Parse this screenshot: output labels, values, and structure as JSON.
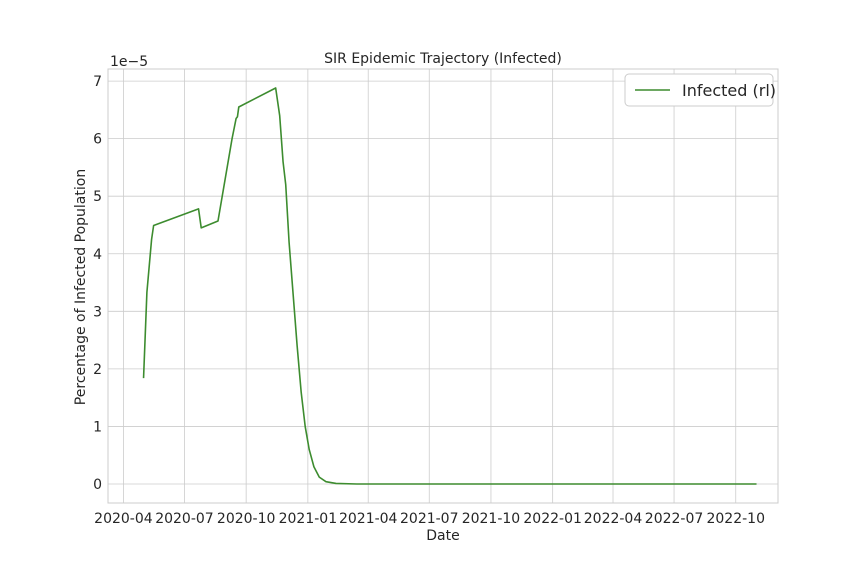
{
  "chart_data": {
    "type": "line",
    "title": "SIR Epidemic Trajectory (Infected)",
    "xlabel": "Date",
    "ylabel": "Percentage of Infected Population",
    "y_scale_label": "1e−5",
    "y_multiplier": 1e-05,
    "xlim": [
      "2020-03-09",
      "2022-12-03"
    ],
    "ylim": [
      -0.33,
      7.21
    ],
    "x_ticks": [
      "2020-04-01",
      "2020-07-01",
      "2020-10-01",
      "2021-01-01",
      "2021-04-01",
      "2021-07-01",
      "2021-10-01",
      "2022-01-01",
      "2022-04-01",
      "2022-07-01",
      "2022-10-01"
    ],
    "x_tick_labels": [
      "2020-04",
      "2020-07",
      "2020-10",
      "2021-01",
      "2021-04",
      "2021-07",
      "2021-10",
      "2022-01",
      "2022-04",
      "2022-07",
      "2022-10"
    ],
    "y_ticks": [
      0,
      1,
      2,
      3,
      4,
      5,
      6,
      7
    ],
    "y_tick_labels": [
      "0",
      "1",
      "2",
      "3",
      "4",
      "5",
      "6",
      "7"
    ],
    "grid": true,
    "legend_position": "top-right",
    "series": [
      {
        "name": "Infected (rl)",
        "color": "#3d8c2f",
        "points": [
          [
            "2020-05-01",
            1.84
          ],
          [
            "2020-05-06",
            3.33
          ],
          [
            "2020-05-13",
            4.25
          ],
          [
            "2020-05-16",
            4.49
          ],
          [
            "2020-07-22",
            4.78
          ],
          [
            "2020-07-26",
            4.45
          ],
          [
            "2020-08-20",
            4.57
          ],
          [
            "2020-09-10",
            6.0
          ],
          [
            "2020-09-16",
            6.35
          ],
          [
            "2020-09-18",
            6.38
          ],
          [
            "2020-09-20",
            6.55
          ],
          [
            "2020-11-14",
            6.88
          ],
          [
            "2020-11-20",
            6.4
          ],
          [
            "2020-11-25",
            5.6
          ],
          [
            "2020-11-29",
            5.2
          ],
          [
            "2020-12-04",
            4.2
          ],
          [
            "2020-12-10",
            3.3
          ],
          [
            "2020-12-16",
            2.4
          ],
          [
            "2020-12-22",
            1.6
          ],
          [
            "2020-12-28",
            1.0
          ],
          [
            "2021-01-03",
            0.6
          ],
          [
            "2021-01-10",
            0.3
          ],
          [
            "2021-01-18",
            0.12
          ],
          [
            "2021-01-28",
            0.04
          ],
          [
            "2021-02-12",
            0.01
          ],
          [
            "2021-03-15",
            0.0
          ],
          [
            "2022-11-01",
            0.0
          ]
        ]
      }
    ]
  }
}
